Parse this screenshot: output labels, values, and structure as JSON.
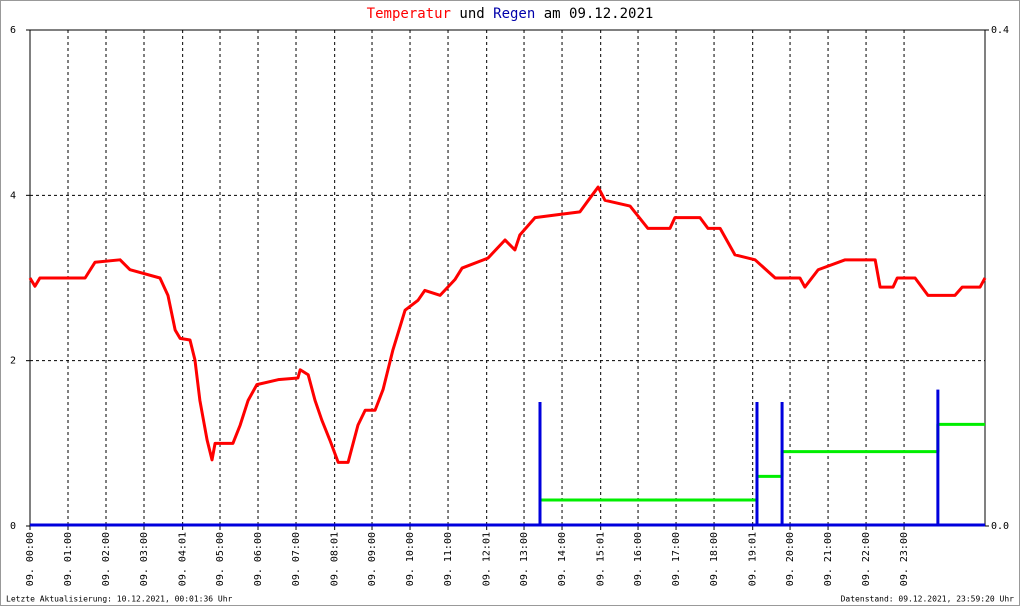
{
  "chart_data": {
    "type": "line",
    "title_parts": [
      "Temperatur",
      "und",
      "Regen",
      "am 09.12.2021"
    ],
    "title_colors": [
      "#ff0000",
      "#000000",
      "#0000aa",
      "#000000"
    ],
    "xlim": [
      0,
      25.13
    ],
    "xticks": [
      {
        "value": 0,
        "label": "09. 00:00"
      },
      {
        "value": 1,
        "label": "09. 01:00"
      },
      {
        "value": 2,
        "label": "09. 02:00"
      },
      {
        "value": 3,
        "label": "09. 03:00"
      },
      {
        "value": 4.017,
        "label": "09. 04:01"
      },
      {
        "value": 5,
        "label": "09. 05:00"
      },
      {
        "value": 6,
        "label": "09. 06:00"
      },
      {
        "value": 7,
        "label": "09. 07:00"
      },
      {
        "value": 8.017,
        "label": "09. 08:01"
      },
      {
        "value": 9,
        "label": "09. 09:00"
      },
      {
        "value": 10,
        "label": "09. 10:00"
      },
      {
        "value": 11,
        "label": "09. 11:00"
      },
      {
        "value": 12.017,
        "label": "09. 12:01"
      },
      {
        "value": 13,
        "label": "09. 13:00"
      },
      {
        "value": 14,
        "label": "09. 14:00"
      },
      {
        "value": 15.017,
        "label": "09. 15:01"
      },
      {
        "value": 16,
        "label": "09. 16:00"
      },
      {
        "value": 17,
        "label": "09. 17:00"
      },
      {
        "value": 18,
        "label": "09. 18:00"
      },
      {
        "value": 19.017,
        "label": "09. 19:01"
      },
      {
        "value": 20,
        "label": "09. 20:00"
      },
      {
        "value": 21,
        "label": "09. 21:00"
      },
      {
        "value": 22,
        "label": "09. 22:00"
      },
      {
        "value": 23,
        "label": "09. 23:00"
      }
    ],
    "ylim": [
      0,
      6
    ],
    "yticks": [
      0,
      2,
      4,
      6
    ],
    "y2lim": [
      0,
      0.4
    ],
    "y2ticks": [
      {
        "value": 0,
        "label": "0.0"
      },
      0.4
    ],
    "grid": true,
    "series": [
      {
        "color": "#ff0000",
        "x": [
          0,
          0.13,
          0.26,
          1.45,
          1.71,
          2.37,
          2.63,
          3.42,
          3.63,
          3.82,
          3.95,
          4.21,
          4.34,
          4.47,
          4.66,
          4.79,
          4.87,
          5.34,
          5.53,
          5.74,
          5.97,
          6.53,
          7.05,
          7.11,
          7.32,
          7.5,
          7.68,
          7.89,
          8.11,
          8.37,
          8.63,
          8.82,
          9.08,
          9.29,
          9.55,
          9.87,
          10.21,
          10.39,
          10.79,
          11.18,
          11.37,
          12.05,
          12.5,
          12.76,
          12.89,
          13.29,
          13.95,
          14.47,
          14.74,
          14.95,
          15.13,
          15.79,
          16.26,
          16.84,
          16.97,
          17.63,
          17.84,
          18.16,
          18.55,
          19.08,
          19.61,
          20.26,
          20.39,
          20.74,
          21.45,
          22.24,
          22.37,
          22.71,
          22.82,
          23.29,
          23.63,
          24.34,
          24.53,
          25.0,
          25.13
        ],
        "values": [
          3.0,
          2.9,
          3.0,
          3.0,
          3.19,
          3.22,
          3.1,
          3.0,
          2.79,
          2.37,
          2.27,
          2.25,
          2.01,
          1.52,
          1.04,
          0.8,
          1.0,
          1.0,
          1.22,
          1.52,
          1.71,
          1.77,
          1.79,
          1.89,
          1.83,
          1.52,
          1.28,
          1.04,
          0.77,
          0.77,
          1.22,
          1.4,
          1.4,
          1.65,
          2.13,
          2.61,
          2.73,
          2.85,
          2.79,
          2.98,
          3.12,
          3.24,
          3.46,
          3.34,
          3.52,
          3.73,
          3.77,
          3.8,
          3.97,
          4.1,
          3.94,
          3.87,
          3.6,
          3.6,
          3.73,
          3.73,
          3.6,
          3.6,
          3.28,
          3.22,
          3.0,
          3.0,
          2.89,
          3.1,
          3.22,
          3.22,
          2.89,
          2.89,
          3.0,
          3.0,
          2.79,
          2.79,
          2.89,
          2.89,
          3.0
        ]
      },
      {
        "type": "bar",
        "axis": "y2",
        "color": "#0000dd",
        "x": [
          13.42,
          19.13,
          19.79,
          23.89
        ],
        "values": [
          0.1,
          0.1,
          0.1,
          0.11
        ]
      },
      {
        "axis": "y2",
        "color": "#00ee00",
        "x": [
          13.42,
          19.13,
          19.13,
          19.79,
          19.79,
          23.89,
          23.89,
          25.13
        ],
        "values": [
          0.021,
          0.021,
          0.04,
          0.04,
          0.06,
          0.06,
          0.082,
          0.082
        ]
      }
    ],
    "footer_left": "Letzte Aktualisierung: 10.12.2021, 00:01:36 Uhr",
    "footer_right": "Datenstand: 09.12.2021, 23:59:20 Uhr"
  }
}
